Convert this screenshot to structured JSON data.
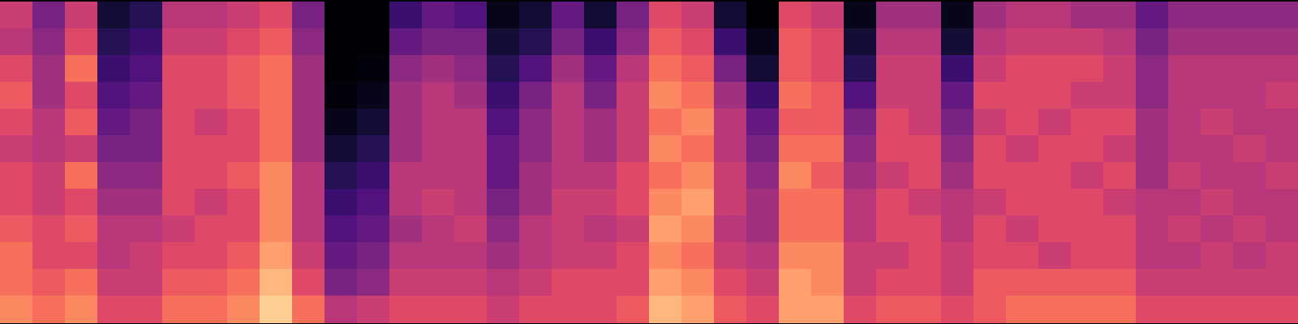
{
  "chart_data": {
    "type": "heatmap",
    "color": "magma",
    "color_range": [
      0,
      1
    ],
    "tick_labels": false,
    "cells": [
      [
        0.55,
        0.5,
        0.6,
        0.65,
        0.6,
        0.55,
        0.6,
        0.6,
        0.65,
        0.7,
        0.7,
        0.75
      ],
      [
        0.35,
        0.4,
        0.45,
        0.45,
        0.5,
        0.5,
        0.55,
        0.55,
        0.6,
        0.6,
        0.65,
        0.7
      ],
      [
        0.55,
        0.6,
        0.7,
        0.6,
        0.65,
        0.55,
        0.7,
        0.6,
        0.65,
        0.6,
        0.7,
        0.75
      ],
      [
        0.1,
        0.15,
        0.2,
        0.25,
        0.3,
        0.35,
        0.4,
        0.45,
        0.5,
        0.5,
        0.55,
        0.6
      ],
      [
        0.15,
        0.2,
        0.25,
        0.3,
        0.35,
        0.35,
        0.4,
        0.45,
        0.5,
        0.55,
        0.55,
        0.6
      ],
      [
        0.5,
        0.55,
        0.6,
        0.6,
        0.6,
        0.6,
        0.6,
        0.6,
        0.55,
        0.6,
        0.65,
        0.7
      ],
      [
        0.5,
        0.55,
        0.6,
        0.6,
        0.55,
        0.6,
        0.6,
        0.55,
        0.6,
        0.6,
        0.65,
        0.7
      ],
      [
        0.55,
        0.6,
        0.65,
        0.65,
        0.6,
        0.6,
        0.65,
        0.6,
        0.6,
        0.65,
        0.7,
        0.75
      ],
      [
        0.6,
        0.65,
        0.7,
        0.7,
        0.7,
        0.7,
        0.75,
        0.75,
        0.75,
        0.8,
        0.85,
        0.9
      ],
      [
        0.35,
        0.4,
        0.45,
        0.45,
        0.45,
        0.45,
        0.5,
        0.5,
        0.5,
        0.55,
        0.6,
        0.7
      ],
      [
        0,
        0,
        0,
        0.02,
        0.05,
        0.1,
        0.15,
        0.2,
        0.25,
        0.3,
        0.35,
        0.5
      ],
      [
        0,
        0,
        0.02,
        0.05,
        0.1,
        0.15,
        0.2,
        0.25,
        0.3,
        0.35,
        0.4,
        0.55
      ],
      [
        0.2,
        0.3,
        0.4,
        0.45,
        0.45,
        0.45,
        0.5,
        0.5,
        0.45,
        0.5,
        0.55,
        0.6
      ],
      [
        0.3,
        0.35,
        0.45,
        0.5,
        0.5,
        0.5,
        0.5,
        0.55,
        0.5,
        0.5,
        0.55,
        0.6
      ],
      [
        0.25,
        0.35,
        0.4,
        0.45,
        0.5,
        0.5,
        0.5,
        0.5,
        0.55,
        0.5,
        0.55,
        0.6
      ],
      [
        0.05,
        0.1,
        0.15,
        0.2,
        0.25,
        0.3,
        0.3,
        0.35,
        0.4,
        0.45,
        0.5,
        0.55
      ],
      [
        0.1,
        0.15,
        0.25,
        0.35,
        0.4,
        0.4,
        0.45,
        0.45,
        0.5,
        0.5,
        0.55,
        0.6
      ],
      [
        0.3,
        0.35,
        0.45,
        0.5,
        0.5,
        0.5,
        0.5,
        0.55,
        0.55,
        0.55,
        0.6,
        0.6
      ],
      [
        0.1,
        0.2,
        0.3,
        0.35,
        0.45,
        0.45,
        0.5,
        0.55,
        0.5,
        0.55,
        0.6,
        0.6
      ],
      [
        0.35,
        0.4,
        0.5,
        0.55,
        0.55,
        0.55,
        0.6,
        0.6,
        0.55,
        0.6,
        0.6,
        0.65
      ],
      [
        0.6,
        0.65,
        0.7,
        0.75,
        0.7,
        0.75,
        0.7,
        0.75,
        0.8,
        0.75,
        0.8,
        0.85
      ],
      [
        0.55,
        0.6,
        0.65,
        0.7,
        0.75,
        0.7,
        0.75,
        0.8,
        0.75,
        0.7,
        0.75,
        0.8
      ],
      [
        0.1,
        0.2,
        0.35,
        0.45,
        0.5,
        0.5,
        0.55,
        0.55,
        0.5,
        0.55,
        0.6,
        0.65
      ],
      [
        0,
        0.05,
        0.1,
        0.2,
        0.3,
        0.35,
        0.4,
        0.45,
        0.45,
        0.5,
        0.55,
        0.6
      ],
      [
        0.6,
        0.65,
        0.65,
        0.7,
        0.65,
        0.7,
        0.75,
        0.7,
        0.7,
        0.75,
        0.8,
        0.8
      ],
      [
        0.55,
        0.6,
        0.6,
        0.65,
        0.65,
        0.7,
        0.65,
        0.7,
        0.7,
        0.75,
        0.75,
        0.8
      ],
      [
        0.05,
        0.1,
        0.15,
        0.25,
        0.35,
        0.4,
        0.45,
        0.5,
        0.5,
        0.55,
        0.55,
        0.6
      ],
      [
        0.45,
        0.5,
        0.55,
        0.55,
        0.6,
        0.6,
        0.55,
        0.6,
        0.6,
        0.55,
        0.6,
        0.65
      ],
      [
        0.45,
        0.5,
        0.55,
        0.55,
        0.55,
        0.6,
        0.6,
        0.55,
        0.6,
        0.6,
        0.6,
        0.65
      ],
      [
        0.05,
        0.1,
        0.2,
        0.3,
        0.35,
        0.4,
        0.45,
        0.5,
        0.5,
        0.55,
        0.55,
        0.6
      ],
      [
        0.45,
        0.5,
        0.55,
        0.6,
        0.55,
        0.6,
        0.6,
        0.55,
        0.6,
        0.6,
        0.65,
        0.65
      ],
      [
        0.5,
        0.55,
        0.6,
        0.6,
        0.6,
        0.55,
        0.6,
        0.6,
        0.55,
        0.6,
        0.65,
        0.7
      ],
      [
        0.5,
        0.55,
        0.6,
        0.6,
        0.55,
        0.6,
        0.6,
        0.6,
        0.6,
        0.55,
        0.65,
        0.7
      ],
      [
        0.45,
        0.55,
        0.6,
        0.55,
        0.6,
        0.6,
        0.55,
        0.6,
        0.6,
        0.6,
        0.65,
        0.7
      ],
      [
        0.45,
        0.5,
        0.55,
        0.55,
        0.6,
        0.55,
        0.6,
        0.55,
        0.6,
        0.6,
        0.65,
        0.7
      ],
      [
        0.3,
        0.35,
        0.4,
        0.4,
        0.45,
        0.45,
        0.45,
        0.5,
        0.5,
        0.5,
        0.55,
        0.6
      ],
      [
        0.4,
        0.45,
        0.5,
        0.5,
        0.5,
        0.5,
        0.55,
        0.5,
        0.55,
        0.5,
        0.55,
        0.6
      ],
      [
        0.4,
        0.45,
        0.5,
        0.5,
        0.55,
        0.5,
        0.5,
        0.55,
        0.5,
        0.55,
        0.55,
        0.6
      ],
      [
        0.4,
        0.45,
        0.5,
        0.5,
        0.5,
        0.55,
        0.5,
        0.5,
        0.55,
        0.5,
        0.55,
        0.6
      ],
      [
        0.4,
        0.45,
        0.5,
        0.55,
        0.5,
        0.5,
        0.55,
        0.5,
        0.5,
        0.55,
        0.55,
        0.6
      ]
    ]
  }
}
